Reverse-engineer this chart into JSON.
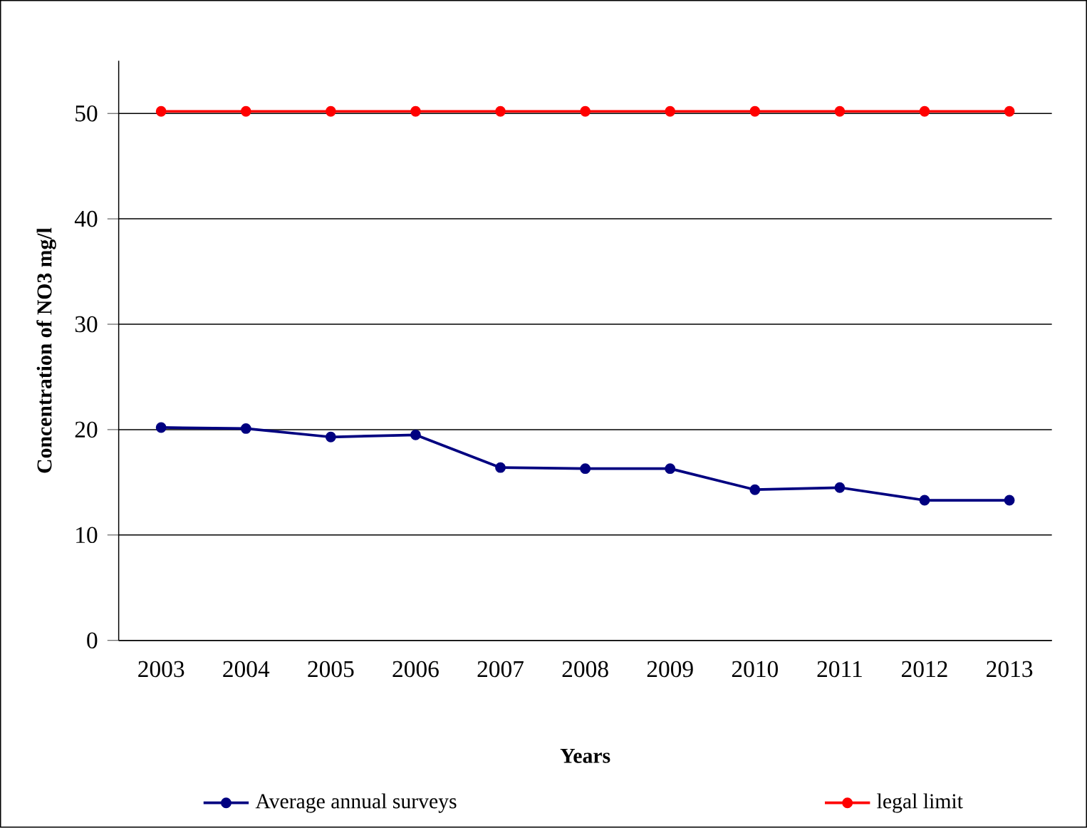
{
  "chart_data": {
    "type": "line",
    "xlabel": "Years",
    "ylabel": "Concentration of NO3 mg/l",
    "categories": [
      "2003",
      "2004",
      "2005",
      "2006",
      "2007",
      "2008",
      "2009",
      "2010",
      "2011",
      "2012",
      "2013"
    ],
    "series": [
      {
        "name": "Average annual surveys",
        "color": "#000080",
        "values": [
          20.2,
          20.1,
          19.3,
          19.5,
          16.4,
          16.3,
          16.3,
          14.3,
          14.5,
          13.3,
          13.3
        ]
      },
      {
        "name": "legal limit",
        "color": "#ff0000",
        "values": [
          50.2,
          50.2,
          50.2,
          50.2,
          50.2,
          50.2,
          50.2,
          50.2,
          50.2,
          50.2,
          50.2
        ]
      }
    ],
    "ylim": [
      0,
      55
    ],
    "yticks": [
      0,
      10,
      20,
      30,
      40,
      50
    ],
    "grid": "y",
    "legend": "bottom",
    "marker": "circle",
    "line_style": "solid"
  }
}
